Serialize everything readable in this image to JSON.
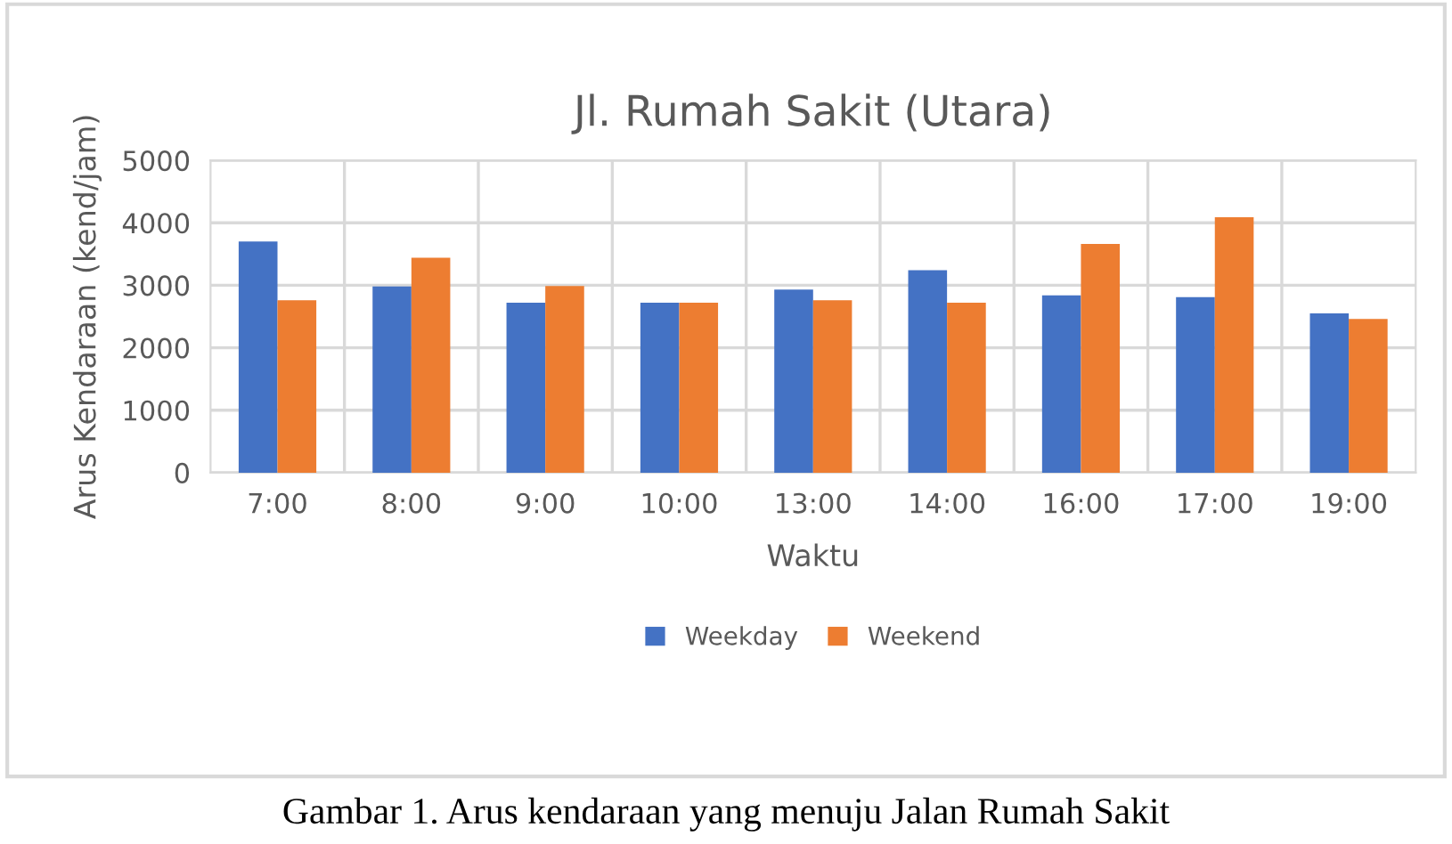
{
  "chart_data": {
    "type": "bar",
    "title": "Jl. Rumah Sakit (Utara)",
    "xlabel": "Waktu",
    "ylabel": "Arus Kendaraan (kend/jam)",
    "categories": [
      "7:00",
      "8:00",
      "9:00",
      "10:00",
      "13:00",
      "14:00",
      "16:00",
      "17:00",
      "19:00"
    ],
    "series": [
      {
        "name": "Weekday",
        "color": "#4472c4",
        "values": [
          3700,
          2980,
          2720,
          2720,
          2930,
          3240,
          2840,
          2810,
          2550
        ]
      },
      {
        "name": "Weekend",
        "color": "#ed7d31",
        "values": [
          2760,
          3440,
          2990,
          2720,
          2760,
          2720,
          3660,
          4090,
          2460
        ]
      }
    ],
    "ylim": [
      0,
      5000
    ],
    "yticks": [
      0,
      1000,
      2000,
      3000,
      4000,
      5000
    ],
    "grid": true,
    "legend": "bottom",
    "annotations": [
      "Gambar 1. Arus kendaraan yang menuju Jalan Rumah Sakit"
    ]
  }
}
